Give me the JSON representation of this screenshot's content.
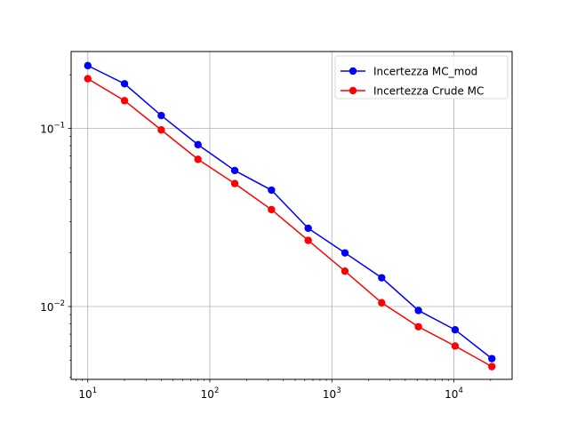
{
  "chart_data": {
    "type": "line",
    "title": "",
    "xlabel": "",
    "ylabel": "",
    "xscale": "log",
    "yscale": "log",
    "xlim": [
      7.3,
      30000
    ],
    "ylim": [
      0.0039,
      0.27
    ],
    "grid": true,
    "legend_position": "top-right",
    "x": [
      10,
      20,
      40,
      80,
      160,
      320,
      640,
      1280,
      2560,
      5120,
      10240,
      20480
    ],
    "x_ticks": [
      {
        "value": 10,
        "base": "10",
        "exp": "1"
      },
      {
        "value": 100,
        "base": "10",
        "exp": "2"
      },
      {
        "value": 1000,
        "base": "10",
        "exp": "3"
      },
      {
        "value": 10000,
        "base": "10",
        "exp": "4"
      }
    ],
    "y_ticks": [
      {
        "value": 0.1,
        "base": "10",
        "exp": "−1"
      },
      {
        "value": 0.01,
        "base": "10",
        "exp": "−2"
      }
    ],
    "series": [
      {
        "name": "Incertezza MC_mod",
        "color": "#0000ff",
        "values": [
          0.225,
          0.178,
          0.118,
          0.081,
          0.058,
          0.045,
          0.0275,
          0.02,
          0.0145,
          0.0095,
          0.0074,
          0.0051
        ]
      },
      {
        "name": "Incertezza Crude MC",
        "color": "#ff0000",
        "values": [
          0.19,
          0.143,
          0.098,
          0.067,
          0.049,
          0.035,
          0.0235,
          0.0158,
          0.0105,
          0.0077,
          0.006,
          0.0046
        ]
      }
    ]
  }
}
